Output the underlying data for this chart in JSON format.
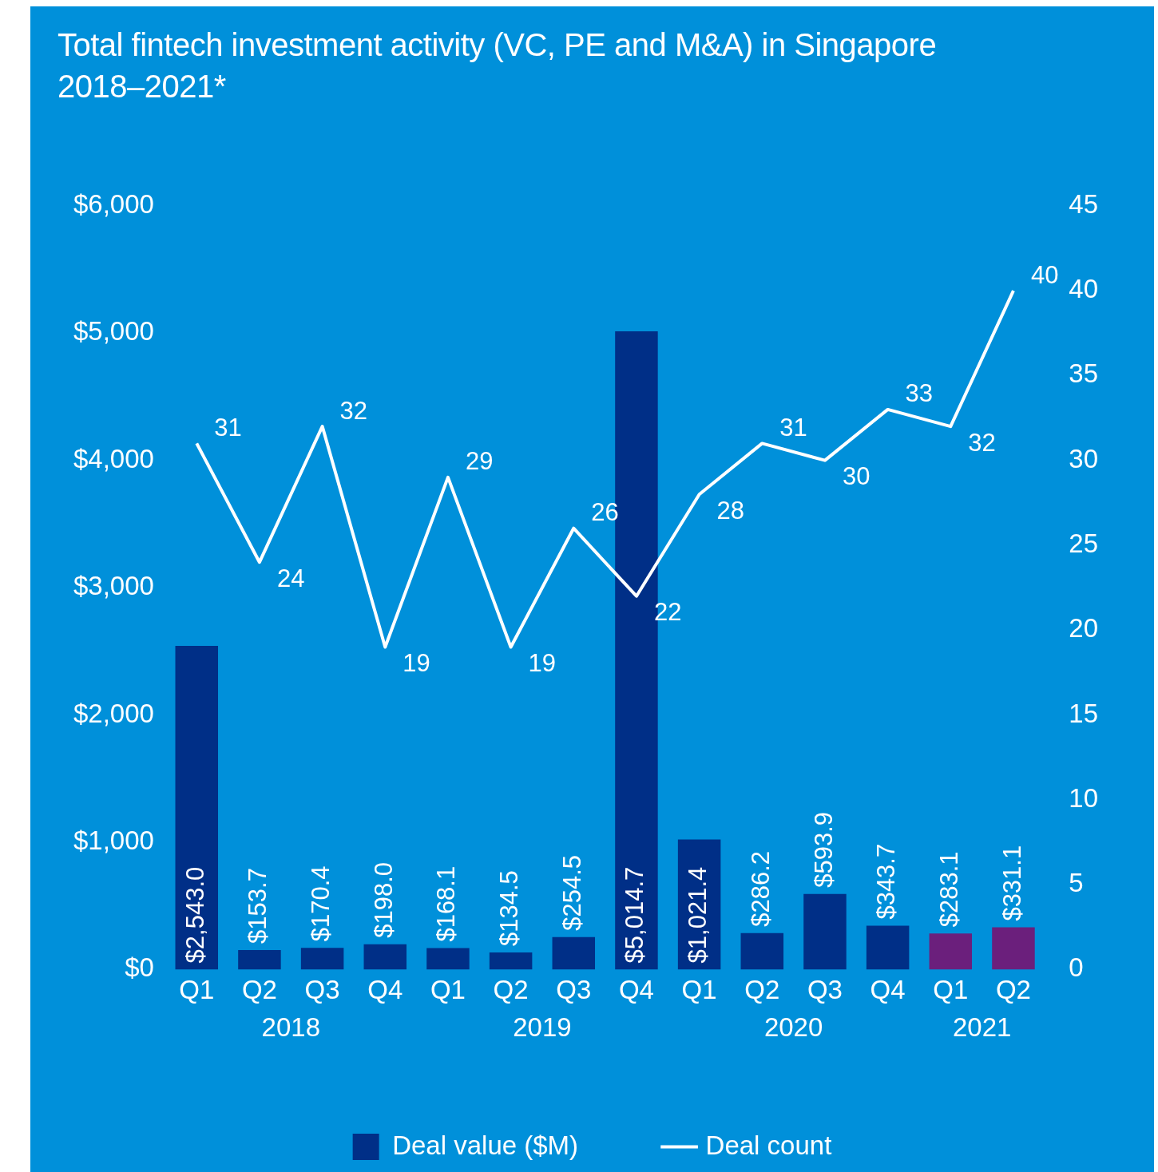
{
  "chart_data": {
    "type": "bar",
    "title": "Total fintech investment activity (VC, PE and M&A) in Singapore 2018–2021*",
    "categories": [
      "Q1",
      "Q2",
      "Q3",
      "Q4",
      "Q1",
      "Q2",
      "Q3",
      "Q4",
      "Q1",
      "Q2",
      "Q3",
      "Q4",
      "Q1",
      "Q2"
    ],
    "annotations": [
      "2018",
      "2019",
      "2020",
      "2021"
    ],
    "series": [
      {
        "name": "Deal value ($M)",
        "color": "#002f87",
        "colors": [
          "#002f87",
          "#002f87",
          "#002f87",
          "#002f87",
          "#002f87",
          "#002f87",
          "#002f87",
          "#002f87",
          "#002f87",
          "#002f87",
          "#002f87",
          "#002f87",
          "#6b1f7c",
          "#6b1f7c"
        ],
        "values": [
          2543.0,
          153.7,
          170.4,
          198.0,
          168.1,
          134.5,
          254.5,
          5014.7,
          1021.4,
          286.2,
          593.9,
          343.7,
          283.1,
          331.1
        ],
        "value_labels": [
          "$2,543.0",
          "$153.7",
          "$170.4",
          "$198.0",
          "$168.1",
          "$134.5",
          "$254.5",
          "$5,014.7",
          "$1,021.4",
          "$286.2",
          "$593.9",
          "$343.7",
          "$283.1",
          "$331.1"
        ]
      },
      {
        "name": "Deal count",
        "type": "line",
        "axis": "y2",
        "color": "#ffffff",
        "values": [
          31,
          24,
          32,
          19,
          29,
          19,
          26,
          22,
          28,
          31,
          30,
          33,
          32,
          40
        ],
        "value_labels": [
          "31",
          "24",
          "32",
          "19",
          "29",
          "19",
          "26",
          "22",
          "28",
          "31",
          "30",
          "33",
          "32",
          "40"
        ]
      }
    ],
    "ylim": [
      0,
      6000
    ],
    "yticks": [
      {
        "value": 0,
        "label": "$0"
      },
      {
        "value": 1000,
        "label": "$1,000"
      },
      {
        "value": 2000,
        "label": "$2,000"
      },
      {
        "value": 3000,
        "label": "$3,000"
      },
      {
        "value": 4000,
        "label": "$4,000"
      },
      {
        "value": 5000,
        "label": "$5,000"
      },
      {
        "value": 6000,
        "label": "$6,000"
      }
    ],
    "y2lim": [
      0,
      45
    ],
    "y2ticks": [
      0,
      5,
      10,
      15,
      20,
      25,
      30,
      35,
      40,
      45
    ],
    "grid": false,
    "legend": "bottom",
    "marker": "none",
    "line_style": "solid"
  }
}
